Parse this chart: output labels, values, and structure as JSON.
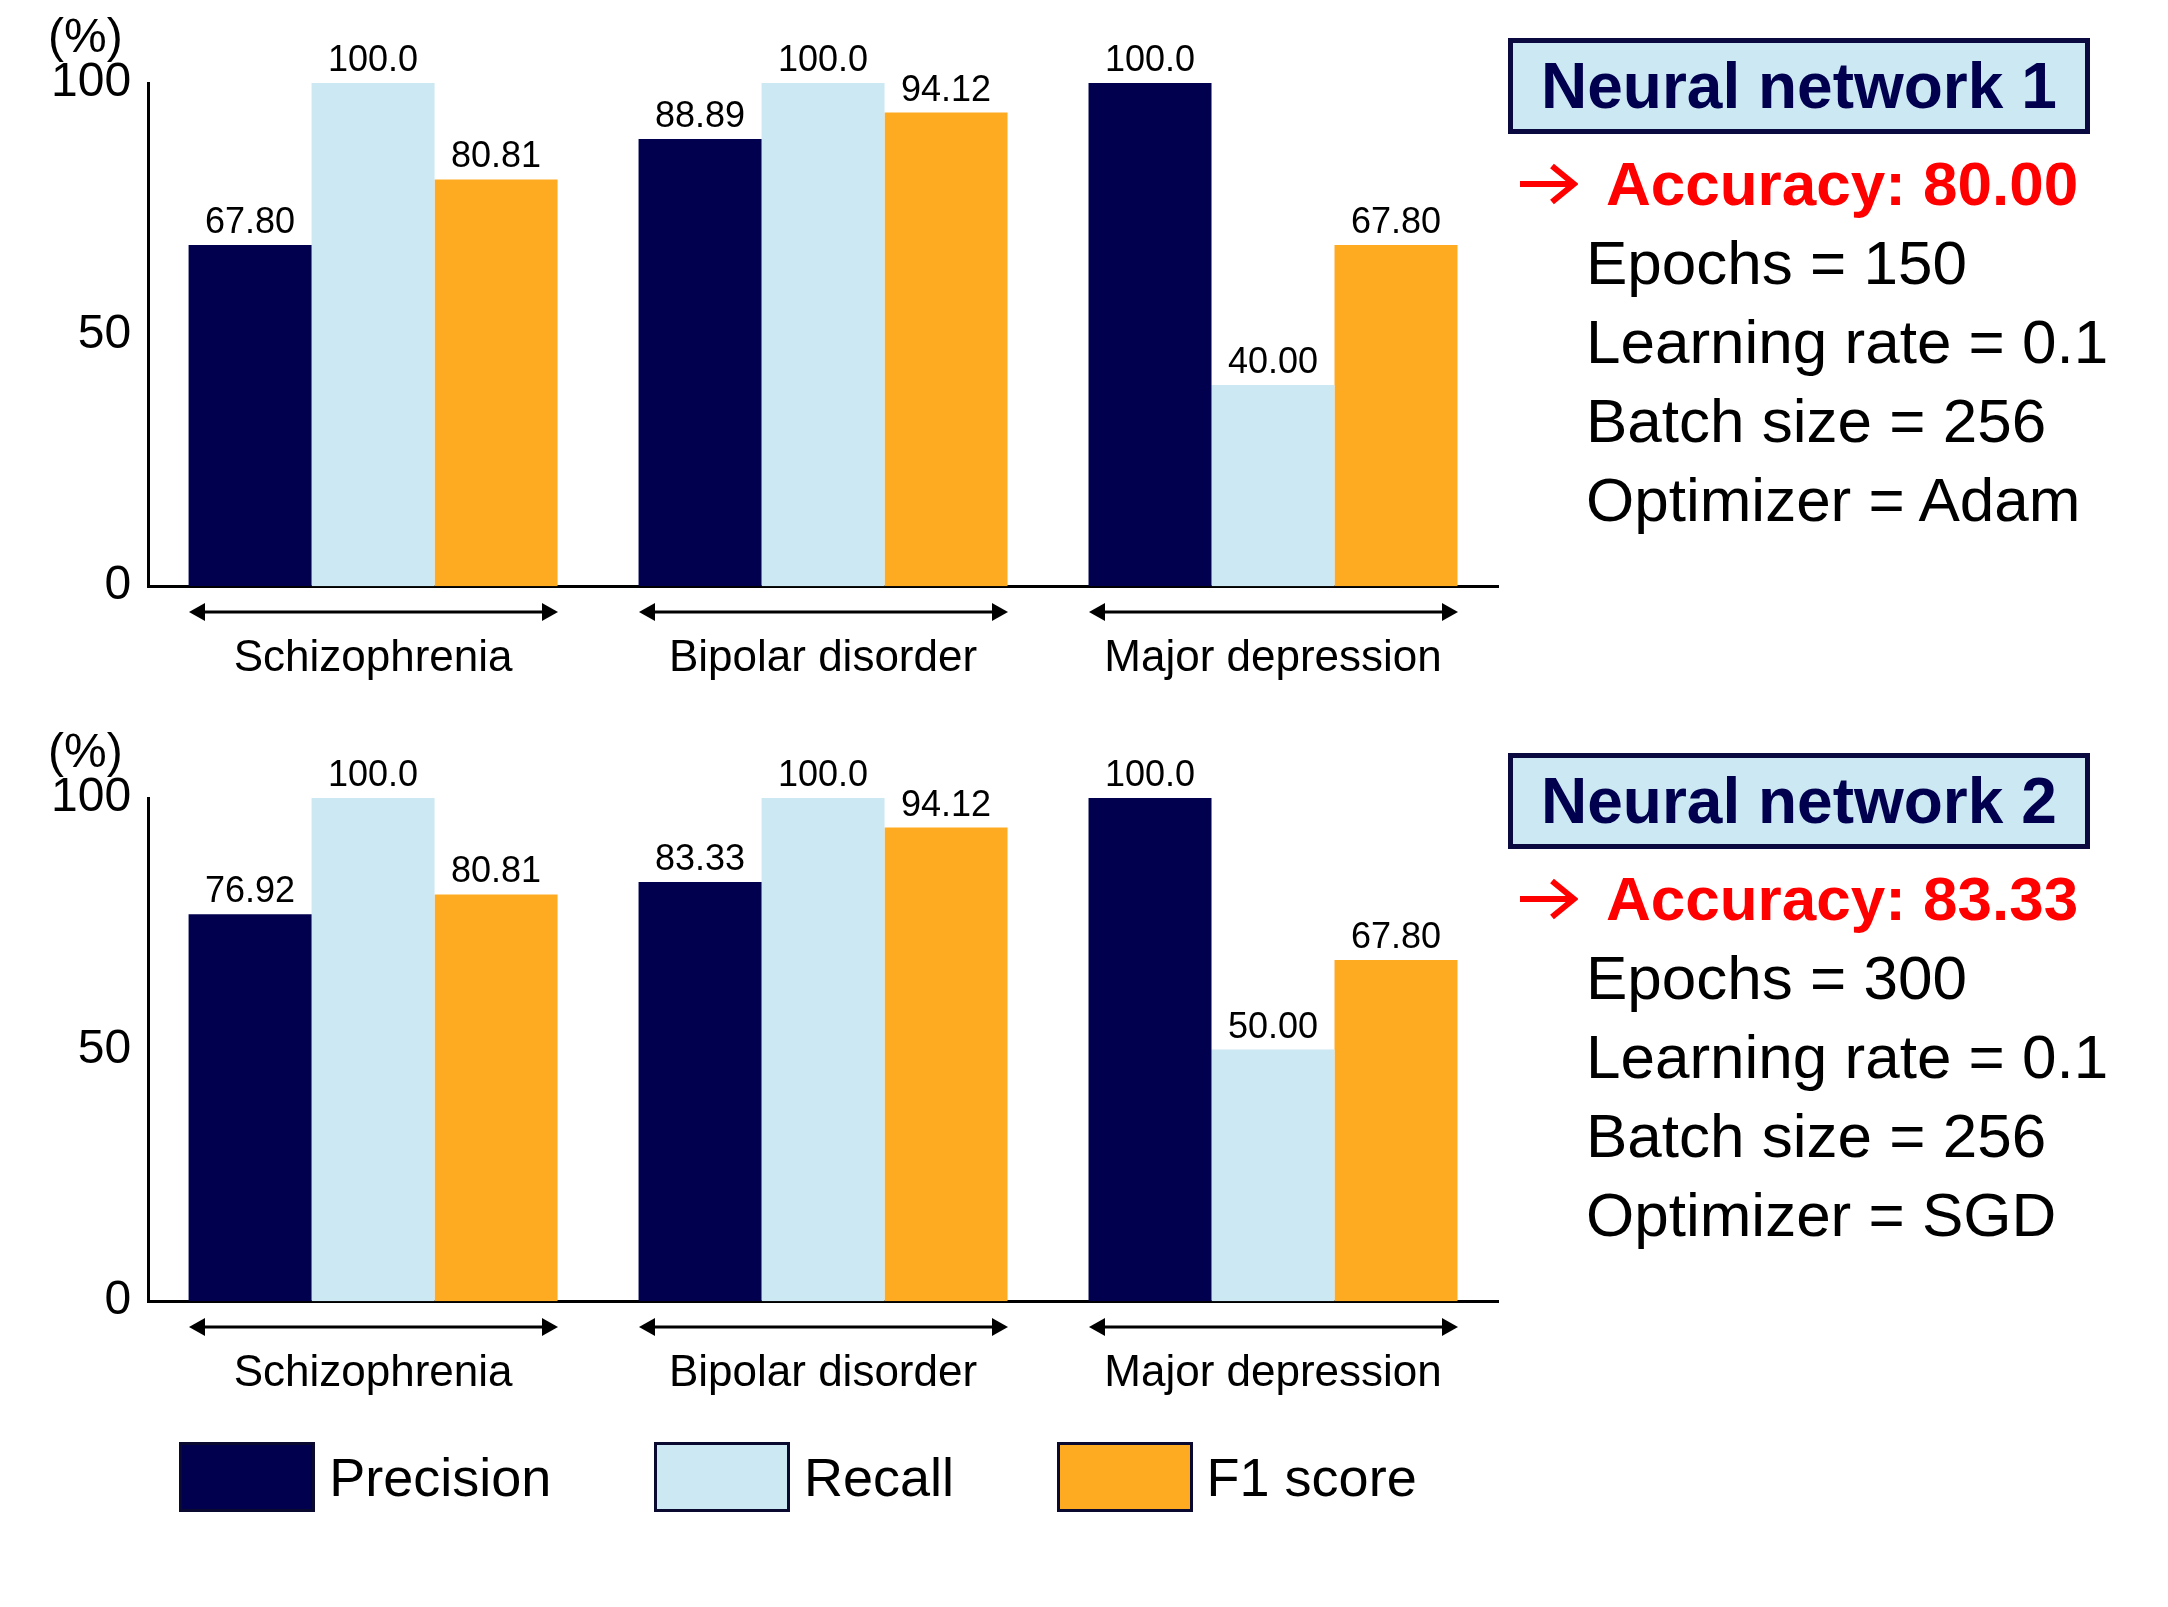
{
  "chart_data": [
    {
      "type": "bar",
      "ylabel": "(%)",
      "categories": [
        "Schizophrenia",
        "Bipolar disorder",
        "Major depression"
      ],
      "ylim": [
        0,
        100
      ],
      "yticks": [
        0,
        50,
        100
      ],
      "grid": false,
      "legend": false,
      "series": [
        {
          "color": "#00004f",
          "values": [
            67.8,
            88.89,
            100
          ],
          "value_labels": [
            "67.80",
            "88.89",
            "100.0"
          ]
        },
        {
          "color": "#cce8f3",
          "values": [
            100,
            100,
            40
          ],
          "value_labels": [
            "100.0",
            "100.0",
            "40.00"
          ]
        },
        {
          "color": "#ffab21",
          "values": [
            80.81,
            94.12,
            67.8
          ],
          "value_labels": [
            "80.81",
            "94.12",
            "67.80"
          ]
        }
      ]
    },
    {
      "type": "other",
      "title": "Neural network 1",
      "annotations": [
        "Accuracy: 80.00",
        "Epochs = 150",
        "Learning rate = 0.1",
        "Batch size = 256",
        "Optimizer = Adam"
      ]
    },
    {
      "type": "bar",
      "ylabel": "(%)",
      "categories": [
        "Schizophrenia",
        "Bipolar disorder",
        "Major depression"
      ],
      "ylim": [
        0,
        100
      ],
      "yticks": [
        0,
        50,
        100
      ],
      "grid": false,
      "legend": "bottom",
      "series": [
        {
          "name": "Precision",
          "color": "#00004f",
          "values": [
            76.92,
            83.33,
            100
          ],
          "value_labels": [
            "76.92",
            "83.33",
            "100.0"
          ]
        },
        {
          "name": "Recall",
          "color": "#cce8f3",
          "values": [
            100,
            100,
            50
          ],
          "value_labels": [
            "100.0",
            "100.0",
            "50.00"
          ]
        },
        {
          "name": "F1 score",
          "color": "#ffab21",
          "values": [
            80.81,
            94.12,
            67.8
          ],
          "value_labels": [
            "80.81",
            "94.12",
            "67.80"
          ]
        }
      ]
    },
    {
      "type": "other",
      "title": "Neural network 2",
      "annotations": [
        "Accuracy: 83.33",
        "Epochs = 300",
        "Learning rate = 0.1",
        "Batch size = 256",
        "Optimizer = SGD"
      ]
    }
  ]
}
